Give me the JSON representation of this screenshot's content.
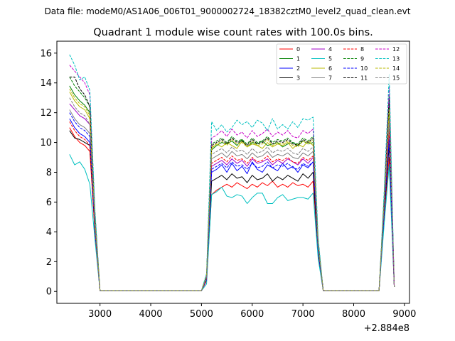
{
  "figure": {
    "suptitle": "Data file: modeM0/AS1A06_006T01_9000002724_18382cztM0_level2_quad_clean.evt"
  },
  "chart_data": {
    "type": "line",
    "title": "Quadrant 1 module wise count rates with 100.0s bins.",
    "xlabel": "",
    "ylabel": "",
    "x_offset_label": "+2.884e8",
    "xlim": [
      2150,
      9100
    ],
    "ylim": [
      -0.8,
      16.8
    ],
    "xticks": [
      3000,
      4000,
      5000,
      6000,
      7000,
      8000,
      9000
    ],
    "xtick_labels": [
      "3000",
      "4000",
      "5000",
      "6000",
      "7000",
      "8000",
      "9000"
    ],
    "yticks": [
      0,
      2,
      4,
      6,
      8,
      10,
      12,
      14,
      16
    ],
    "ytick_labels": [
      "0",
      "2",
      "4",
      "6",
      "8",
      "10",
      "12",
      "14",
      "16"
    ],
    "grid": false,
    "legend_position": "top-right",
    "legend_columns": 4,
    "x": [
      2400,
      2500,
      2600,
      2700,
      2800,
      2900,
      3000,
      3100,
      3200,
      3300,
      3400,
      3500,
      3600,
      3700,
      3800,
      3900,
      4000,
      4100,
      4200,
      4300,
      4400,
      4500,
      4600,
      4700,
      4800,
      4900,
      5000,
      5100,
      5200,
      5300,
      5400,
      5500,
      5600,
      5700,
      5800,
      5900,
      6000,
      6100,
      6200,
      6300,
      6400,
      6500,
      6600,
      6700,
      6800,
      6900,
      7000,
      7100,
      7200,
      7300,
      7400,
      7500,
      7600,
      7700,
      7800,
      7900,
      8000,
      8100,
      8200,
      8300,
      8400,
      8500,
      8600,
      8700,
      8800
    ],
    "series": [
      {
        "name": "0",
        "color": "#ff0000",
        "dash": "solid",
        "values": [
          11.0,
          10.4,
          10.0,
          9.8,
          9.4,
          4.0,
          0.05,
          0.05,
          0.05,
          0.05,
          0.05,
          0.05,
          0.05,
          0.05,
          0.05,
          0.05,
          0.05,
          0.05,
          0.05,
          0.05,
          0.05,
          0.05,
          0.05,
          0.05,
          0.05,
          0.05,
          0.05,
          0.7,
          6.5,
          6.8,
          7.0,
          7.2,
          7.0,
          7.3,
          7.1,
          6.9,
          7.2,
          7.0,
          7.3,
          7.1,
          7.4,
          7.0,
          7.2,
          7.0,
          7.3,
          7.1,
          7.2,
          7.0,
          7.4,
          2.5,
          0.05,
          0.05,
          0.05,
          0.05,
          0.05,
          0.05,
          0.05,
          0.05,
          0.05,
          0.05,
          0.05,
          0.05,
          5.0,
          9.0,
          0.3
        ]
      },
      {
        "name": "1",
        "color": "#008000",
        "dash": "solid",
        "values": [
          13.8,
          13.2,
          12.8,
          12.5,
          12.0,
          5.0,
          0.05,
          0.05,
          0.05,
          0.05,
          0.05,
          0.05,
          0.05,
          0.05,
          0.05,
          0.05,
          0.05,
          0.05,
          0.05,
          0.05,
          0.05,
          0.05,
          0.05,
          0.05,
          0.05,
          0.05,
          0.05,
          1.0,
          9.5,
          9.8,
          10.0,
          9.9,
          10.1,
          9.8,
          10.2,
          9.7,
          10.0,
          9.9,
          10.1,
          9.8,
          9.9,
          10.0,
          9.7,
          9.9,
          10.0,
          9.8,
          10.1,
          9.9,
          10.0,
          3.2,
          0.05,
          0.05,
          0.05,
          0.05,
          0.05,
          0.05,
          0.05,
          0.05,
          0.05,
          0.05,
          0.05,
          0.05,
          6.0,
          12.5,
          0.3
        ]
      },
      {
        "name": "2",
        "color": "#0000ff",
        "dash": "solid",
        "values": [
          11.6,
          11.0,
          10.6,
          10.4,
          10.0,
          4.2,
          0.05,
          0.05,
          0.05,
          0.05,
          0.05,
          0.05,
          0.05,
          0.05,
          0.05,
          0.05,
          0.05,
          0.05,
          0.05,
          0.05,
          0.05,
          0.05,
          0.05,
          0.05,
          0.05,
          0.05,
          0.05,
          0.8,
          8.0,
          8.2,
          8.5,
          8.0,
          8.6,
          8.1,
          8.4,
          7.9,
          8.7,
          8.2,
          8.0,
          8.5,
          8.3,
          8.1,
          8.6,
          8.2,
          8.4,
          8.0,
          8.5,
          8.3,
          8.7,
          2.8,
          0.05,
          0.05,
          0.05,
          0.05,
          0.05,
          0.05,
          0.05,
          0.05,
          0.05,
          0.05,
          0.05,
          0.05,
          5.4,
          10.5,
          0.3
        ]
      },
      {
        "name": "3",
        "color": "#000000",
        "dash": "solid",
        "values": [
          10.8,
          10.3,
          10.2,
          10.0,
          9.8,
          4.0,
          0.05,
          0.05,
          0.05,
          0.05,
          0.05,
          0.05,
          0.05,
          0.05,
          0.05,
          0.05,
          0.05,
          0.05,
          0.05,
          0.05,
          0.05,
          0.05,
          0.05,
          0.05,
          0.05,
          0.05,
          0.05,
          0.8,
          7.4,
          7.6,
          7.8,
          7.5,
          7.9,
          7.6,
          7.7,
          7.3,
          7.8,
          7.5,
          7.6,
          7.9,
          7.4,
          7.7,
          7.5,
          7.8,
          7.6,
          7.4,
          7.9,
          7.6,
          8.0,
          2.6,
          0.05,
          0.05,
          0.05,
          0.05,
          0.05,
          0.05,
          0.05,
          0.05,
          0.05,
          0.05,
          0.05,
          0.05,
          5.2,
          9.8,
          0.3
        ]
      },
      {
        "name": "4",
        "color": "#a000c8",
        "dash": "solid",
        "values": [
          12.6,
          12.2,
          11.8,
          11.6,
          11.2,
          4.5,
          0.05,
          0.05,
          0.05,
          0.05,
          0.05,
          0.05,
          0.05,
          0.05,
          0.05,
          0.05,
          0.05,
          0.05,
          0.05,
          0.05,
          0.05,
          0.05,
          0.05,
          0.05,
          0.05,
          0.05,
          0.05,
          0.9,
          8.4,
          8.6,
          8.8,
          8.5,
          8.9,
          8.6,
          8.8,
          8.4,
          8.9,
          8.6,
          8.7,
          8.9,
          8.5,
          8.8,
          8.6,
          8.9,
          8.7,
          8.5,
          8.9,
          8.6,
          9.0,
          2.9,
          0.05,
          0.05,
          0.05,
          0.05,
          0.05,
          0.05,
          0.05,
          0.05,
          0.05,
          0.05,
          0.05,
          0.05,
          5.6,
          11.0,
          0.3
        ]
      },
      {
        "name": "5",
        "color": "#00c0c0",
        "dash": "solid",
        "values": [
          9.2,
          8.5,
          8.7,
          8.2,
          7.2,
          3.5,
          0.05,
          0.05,
          0.05,
          0.05,
          0.05,
          0.05,
          0.05,
          0.05,
          0.05,
          0.05,
          0.05,
          0.05,
          0.05,
          0.05,
          0.05,
          0.05,
          0.05,
          0.05,
          0.05,
          0.05,
          0.05,
          0.5,
          6.5,
          6.7,
          7.0,
          6.4,
          6.3,
          6.5,
          6.4,
          5.9,
          6.3,
          6.6,
          6.6,
          5.9,
          5.9,
          6.3,
          6.5,
          6.1,
          6.2,
          6.3,
          6.3,
          6.2,
          6.6,
          2.2,
          0.05,
          0.05,
          0.05,
          0.05,
          0.05,
          0.05,
          0.05,
          0.05,
          0.05,
          0.05,
          0.05,
          0.05,
          4.5,
          8.5,
          0.3
        ]
      },
      {
        "name": "6",
        "color": "#b8b800",
        "dash": "solid",
        "values": [
          13.4,
          12.8,
          12.4,
          12.2,
          11.6,
          4.8,
          0.05,
          0.05,
          0.05,
          0.05,
          0.05,
          0.05,
          0.05,
          0.05,
          0.05,
          0.05,
          0.05,
          0.05,
          0.05,
          0.05,
          0.05,
          0.05,
          0.05,
          0.05,
          0.05,
          0.05,
          0.05,
          1.0,
          9.6,
          9.9,
          9.7,
          10.0,
          9.8,
          9.6,
          10.1,
          9.7,
          9.9,
          9.8,
          9.6,
          10.0,
          9.7,
          9.9,
          9.8,
          10.0,
          9.6,
          9.9,
          9.7,
          10.1,
          9.8,
          3.1,
          0.05,
          0.05,
          0.05,
          0.05,
          0.05,
          0.05,
          0.05,
          0.05,
          0.05,
          0.05,
          0.05,
          0.05,
          5.9,
          12.0,
          0.3
        ]
      },
      {
        "name": "7",
        "color": "#808080",
        "dash": "solid",
        "values": [
          12.2,
          11.6,
          11.2,
          11.0,
          10.6,
          4.3,
          0.05,
          0.05,
          0.05,
          0.05,
          0.05,
          0.05,
          0.05,
          0.05,
          0.05,
          0.05,
          0.05,
          0.05,
          0.05,
          0.05,
          0.05,
          0.05,
          0.05,
          0.05,
          0.05,
          0.05,
          0.05,
          0.9,
          8.9,
          9.1,
          9.3,
          9.0,
          9.4,
          9.1,
          9.2,
          8.9,
          9.3,
          9.0,
          9.1,
          9.4,
          9.0,
          9.2,
          9.1,
          9.3,
          9.0,
          8.9,
          9.3,
          9.1,
          9.4,
          2.9,
          0.05,
          0.05,
          0.05,
          0.05,
          0.05,
          0.05,
          0.05,
          0.05,
          0.05,
          0.05,
          0.05,
          0.05,
          5.7,
          11.2,
          0.3
        ]
      },
      {
        "name": "8",
        "color": "#ff0000",
        "dash": "dashed",
        "values": [
          11.4,
          10.8,
          10.4,
          10.2,
          9.8,
          4.1,
          0.05,
          0.05,
          0.05,
          0.05,
          0.05,
          0.05,
          0.05,
          0.05,
          0.05,
          0.05,
          0.05,
          0.05,
          0.05,
          0.05,
          0.05,
          0.05,
          0.05,
          0.05,
          0.05,
          0.05,
          0.05,
          0.8,
          8.6,
          8.8,
          9.0,
          8.7,
          9.1,
          8.8,
          8.9,
          8.6,
          9.0,
          8.7,
          8.8,
          9.1,
          8.7,
          8.9,
          8.8,
          9.0,
          8.7,
          8.6,
          9.0,
          8.8,
          9.1,
          2.8,
          0.05,
          0.05,
          0.05,
          0.05,
          0.05,
          0.05,
          0.05,
          0.05,
          0.05,
          0.05,
          0.05,
          0.05,
          5.5,
          10.8,
          0.3
        ]
      },
      {
        "name": "9",
        "color": "#008000",
        "dash": "dashed",
        "values": [
          14.4,
          13.8,
          13.4,
          13.0,
          12.4,
          5.2,
          0.05,
          0.05,
          0.05,
          0.05,
          0.05,
          0.05,
          0.05,
          0.05,
          0.05,
          0.05,
          0.05,
          0.05,
          0.05,
          0.05,
          0.05,
          0.05,
          0.05,
          0.05,
          0.05,
          0.05,
          0.05,
          1.1,
          9.9,
          10.1,
          10.3,
          10.0,
          10.4,
          10.1,
          10.2,
          9.9,
          10.3,
          10.0,
          10.1,
          10.4,
          10.0,
          10.2,
          10.1,
          10.3,
          10.0,
          9.9,
          10.3,
          10.1,
          10.4,
          3.3,
          0.05,
          0.05,
          0.05,
          0.05,
          0.05,
          0.05,
          0.05,
          0.05,
          0.05,
          0.05,
          0.05,
          0.05,
          6.2,
          13.2,
          0.3
        ]
      },
      {
        "name": "10",
        "color": "#0000ff",
        "dash": "dashed",
        "values": [
          12.0,
          11.4,
          11.0,
          10.8,
          10.4,
          4.3,
          0.05,
          0.05,
          0.05,
          0.05,
          0.05,
          0.05,
          0.05,
          0.05,
          0.05,
          0.05,
          0.05,
          0.05,
          0.05,
          0.05,
          0.05,
          0.05,
          0.05,
          0.05,
          0.05,
          0.05,
          0.05,
          0.8,
          8.2,
          8.4,
          8.6,
          8.3,
          8.7,
          8.4,
          8.5,
          8.2,
          8.6,
          8.3,
          8.4,
          8.7,
          8.3,
          8.5,
          8.4,
          8.6,
          8.3,
          8.2,
          8.6,
          8.4,
          8.7,
          2.7,
          0.05,
          0.05,
          0.05,
          0.05,
          0.05,
          0.05,
          0.05,
          0.05,
          0.05,
          0.05,
          0.05,
          0.05,
          5.3,
          10.2,
          0.3
        ]
      },
      {
        "name": "11",
        "color": "#000000",
        "dash": "dashed",
        "values": [
          14.4,
          14.4,
          13.6,
          13.2,
          12.4,
          5.0,
          0.05,
          0.05,
          0.05,
          0.05,
          0.05,
          0.05,
          0.05,
          0.05,
          0.05,
          0.05,
          0.05,
          0.05,
          0.05,
          0.05,
          0.05,
          0.05,
          0.05,
          0.05,
          0.05,
          0.05,
          0.05,
          1.0,
          9.8,
          10.0,
          10.2,
          9.9,
          10.3,
          10.0,
          10.1,
          9.8,
          10.2,
          9.9,
          10.0,
          10.3,
          9.9,
          10.1,
          10.0,
          10.2,
          9.9,
          9.8,
          10.2,
          10.0,
          10.3,
          3.2,
          0.05,
          0.05,
          0.05,
          0.05,
          0.05,
          0.05,
          0.05,
          0.05,
          0.05,
          0.05,
          0.05,
          0.05,
          6.1,
          13.0,
          0.3
        ]
      },
      {
        "name": "12",
        "color": "#c800c8",
        "dash": "dashed",
        "values": [
          15.2,
          14.8,
          14.4,
          14.0,
          13.2,
          5.4,
          0.05,
          0.05,
          0.05,
          0.05,
          0.05,
          0.05,
          0.05,
          0.05,
          0.05,
          0.05,
          0.05,
          0.05,
          0.05,
          0.05,
          0.05,
          0.05,
          0.05,
          0.05,
          0.05,
          0.05,
          0.05,
          1.1,
          10.3,
          10.5,
          10.8,
          10.4,
          10.9,
          10.5,
          10.7,
          10.3,
          10.8,
          10.4,
          10.6,
          10.9,
          10.4,
          10.7,
          10.5,
          10.8,
          10.4,
          10.3,
          10.8,
          10.6,
          10.9,
          3.4,
          0.05,
          0.05,
          0.05,
          0.05,
          0.05,
          0.05,
          0.05,
          0.05,
          0.05,
          0.05,
          0.05,
          0.05,
          6.4,
          13.8,
          0.3
        ]
      },
      {
        "name": "13",
        "color": "#00c0c0",
        "dash": "dashed",
        "values": [
          15.9,
          15.2,
          14.2,
          14.4,
          13.5,
          5.5,
          0.05,
          0.05,
          0.05,
          0.05,
          0.05,
          0.05,
          0.05,
          0.05,
          0.05,
          0.05,
          0.05,
          0.05,
          0.05,
          0.05,
          0.05,
          0.05,
          0.05,
          0.05,
          0.05,
          0.05,
          0.05,
          1.2,
          11.4,
          10.8,
          11.2,
          10.7,
          11.0,
          11.5,
          11.2,
          11.4,
          11.0,
          11.5,
          11.3,
          10.8,
          11.6,
          10.9,
          11.2,
          10.9,
          11.4,
          11.0,
          11.6,
          11.5,
          11.7,
          3.6,
          0.05,
          0.05,
          0.05,
          0.05,
          0.05,
          0.05,
          0.05,
          0.05,
          0.05,
          0.05,
          0.05,
          0.05,
          6.7,
          14.6,
          0.3
        ]
      },
      {
        "name": "14",
        "color": "#b8b800",
        "dash": "dashed",
        "values": [
          13.6,
          13.0,
          12.6,
          12.4,
          11.8,
          4.9,
          0.05,
          0.05,
          0.05,
          0.05,
          0.05,
          0.05,
          0.05,
          0.05,
          0.05,
          0.05,
          0.05,
          0.05,
          0.05,
          0.05,
          0.05,
          0.05,
          0.05,
          0.05,
          0.05,
          0.05,
          0.05,
          1.0,
          9.7,
          9.9,
          10.1,
          9.8,
          10.2,
          9.9,
          10.0,
          9.7,
          10.1,
          9.8,
          9.9,
          10.2,
          9.8,
          10.0,
          9.9,
          10.1,
          9.8,
          9.7,
          10.1,
          9.9,
          10.2,
          3.1,
          0.05,
          0.05,
          0.05,
          0.05,
          0.05,
          0.05,
          0.05,
          0.05,
          0.05,
          0.05,
          0.05,
          0.05,
          6.0,
          12.2,
          0.3
        ]
      },
      {
        "name": "15",
        "color": "#808080",
        "dash": "dashed",
        "values": [
          13.0,
          12.4,
          12.0,
          11.8,
          11.2,
          4.6,
          0.05,
          0.05,
          0.05,
          0.05,
          0.05,
          0.05,
          0.05,
          0.05,
          0.05,
          0.05,
          0.05,
          0.05,
          0.05,
          0.05,
          0.05,
          0.05,
          0.05,
          0.05,
          0.05,
          0.05,
          0.05,
          0.9,
          9.2,
          9.4,
          9.6,
          9.3,
          9.7,
          9.4,
          9.5,
          9.2,
          9.6,
          9.3,
          9.4,
          9.7,
          9.3,
          9.5,
          9.4,
          9.6,
          9.3,
          9.2,
          9.6,
          9.4,
          9.7,
          3.0,
          0.05,
          0.05,
          0.05,
          0.05,
          0.05,
          0.05,
          0.05,
          0.05,
          0.05,
          0.05,
          0.05,
          0.05,
          5.8,
          11.6,
          0.3
        ]
      }
    ]
  }
}
